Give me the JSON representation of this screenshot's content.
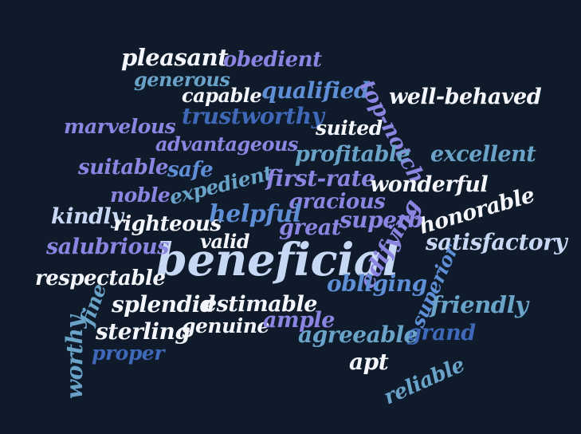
{
  "words": [
    {
      "key": "beneficial",
      "text": "beneficial"
    },
    {
      "key": "pleasant",
      "text": "pleasant"
    },
    {
      "key": "obedient",
      "text": "obedient"
    },
    {
      "key": "generous",
      "text": "generous"
    },
    {
      "key": "capable",
      "text": "capable"
    },
    {
      "key": "qualified",
      "text": "qualified"
    },
    {
      "key": "top_notch",
      "text": "top-notch"
    },
    {
      "key": "well_behaved",
      "text": "well-behaved"
    },
    {
      "key": "trustworthy",
      "text": "trustworthy"
    },
    {
      "key": "marvelous",
      "text": "marvelous"
    },
    {
      "key": "suited",
      "text": "suited"
    },
    {
      "key": "advantageous",
      "text": "advantageous"
    },
    {
      "key": "profitable",
      "text": "profitable"
    },
    {
      "key": "excellent",
      "text": "excellent"
    },
    {
      "key": "suitable",
      "text": "suitable"
    },
    {
      "key": "safe",
      "text": "safe"
    },
    {
      "key": "expedient",
      "text": "expedient"
    },
    {
      "key": "first_rate",
      "text": "first-rate"
    },
    {
      "key": "wonderful",
      "text": "wonderful"
    },
    {
      "key": "noble",
      "text": "noble"
    },
    {
      "key": "gracious",
      "text": "gracious"
    },
    {
      "key": "honorable",
      "text": "honorable"
    },
    {
      "key": "kindly",
      "text": "kindly"
    },
    {
      "key": "righteous",
      "text": "righteous"
    },
    {
      "key": "helpful",
      "text": "helpful"
    },
    {
      "key": "superb",
      "text": "superb"
    },
    {
      "key": "great",
      "text": "great"
    },
    {
      "key": "satisfactory",
      "text": "satisfactory"
    },
    {
      "key": "salubrious",
      "text": "salubrious"
    },
    {
      "key": "valid",
      "text": "valid"
    },
    {
      "key": "edifying",
      "text": "edifying"
    },
    {
      "key": "respectable",
      "text": "respectable"
    },
    {
      "key": "superior",
      "text": "superior"
    },
    {
      "key": "fine",
      "text": "fine"
    },
    {
      "key": "splendid",
      "text": "splendid"
    },
    {
      "key": "estimable",
      "text": "estimable"
    },
    {
      "key": "obliging",
      "text": "obliging"
    },
    {
      "key": "friendly",
      "text": "friendly"
    },
    {
      "key": "worthy",
      "text": "worthy"
    },
    {
      "key": "sterling",
      "text": "sterling"
    },
    {
      "key": "genuine",
      "text": "genuine"
    },
    {
      "key": "ample",
      "text": "ample"
    },
    {
      "key": "grand",
      "text": "grand"
    },
    {
      "key": "proper",
      "text": "proper"
    },
    {
      "key": "agreeable",
      "text": "agreeable"
    },
    {
      "key": "apt",
      "text": "apt"
    },
    {
      "key": "reliable",
      "text": "reliable"
    }
  ]
}
